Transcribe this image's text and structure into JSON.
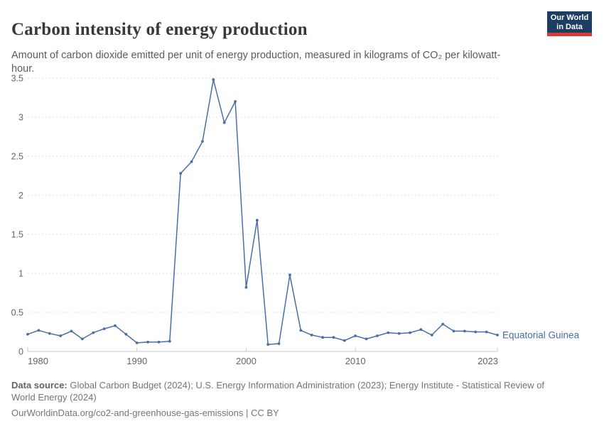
{
  "header": {
    "title": "Carbon intensity of energy production",
    "subtitle": "Amount of carbon dioxide emitted per unit of energy production, measured in kilograms of CO₂ per kilowatt-hour.",
    "logo": {
      "line1": "Our World",
      "line2": "in Data",
      "bg_color": "#1d3d63",
      "bar_color": "#d73c34"
    }
  },
  "chart_data": {
    "type": "line",
    "title": "Carbon intensity of energy production",
    "x": [
      1980,
      1981,
      1982,
      1983,
      1984,
      1985,
      1986,
      1987,
      1988,
      1989,
      1990,
      1991,
      1992,
      1993,
      1994,
      1995,
      1996,
      1997,
      1998,
      1999,
      2000,
      2001,
      2002,
      2003,
      2004,
      2005,
      2006,
      2007,
      2008,
      2009,
      2010,
      2011,
      2012,
      2013,
      2014,
      2015,
      2016,
      2017,
      2018,
      2019,
      2020,
      2021,
      2022,
      2023
    ],
    "series": [
      {
        "name": "Equatorial Guinea",
        "color": "#4a6ea8",
        "values": [
          0.22,
          0.27,
          0.23,
          0.2,
          0.26,
          0.16,
          0.24,
          0.29,
          0.33,
          0.22,
          0.11,
          0.12,
          0.12,
          0.13,
          2.28,
          2.43,
          2.69,
          3.48,
          2.93,
          3.2,
          0.82,
          1.68,
          0.09,
          0.1,
          0.98,
          0.27,
          0.21,
          0.18,
          0.18,
          0.14,
          0.2,
          0.16,
          0.2,
          0.24,
          0.23,
          0.24,
          0.28,
          0.21,
          0.35,
          0.26,
          0.26,
          0.25,
          0.25,
          0.21
        ]
      }
    ],
    "xlabel": "",
    "ylabel": "",
    "xlim": [
      1980,
      2023
    ],
    "ylim": [
      0,
      3.5
    ],
    "xticks": [
      1980,
      1990,
      2000,
      2010,
      2023
    ],
    "yticks": [
      0,
      0.5,
      1,
      1.5,
      2,
      2.5,
      3,
      3.5
    ],
    "grid": "horizontal-dashed",
    "legend_position": "end-of-line-label",
    "axis_text_color": "#666666",
    "grid_color": "#dedede",
    "axis_line_color": "#c8c8c8"
  },
  "footer": {
    "datasource_label": "Data source:",
    "datasource": "Global Carbon Budget (2024); U.S. Energy Information Administration (2023); Energy Institute - Statistical Review of World Energy (2024)",
    "link": "OurWorldinData.org/co2-and-greenhouse-gas-emissions | CC BY"
  }
}
